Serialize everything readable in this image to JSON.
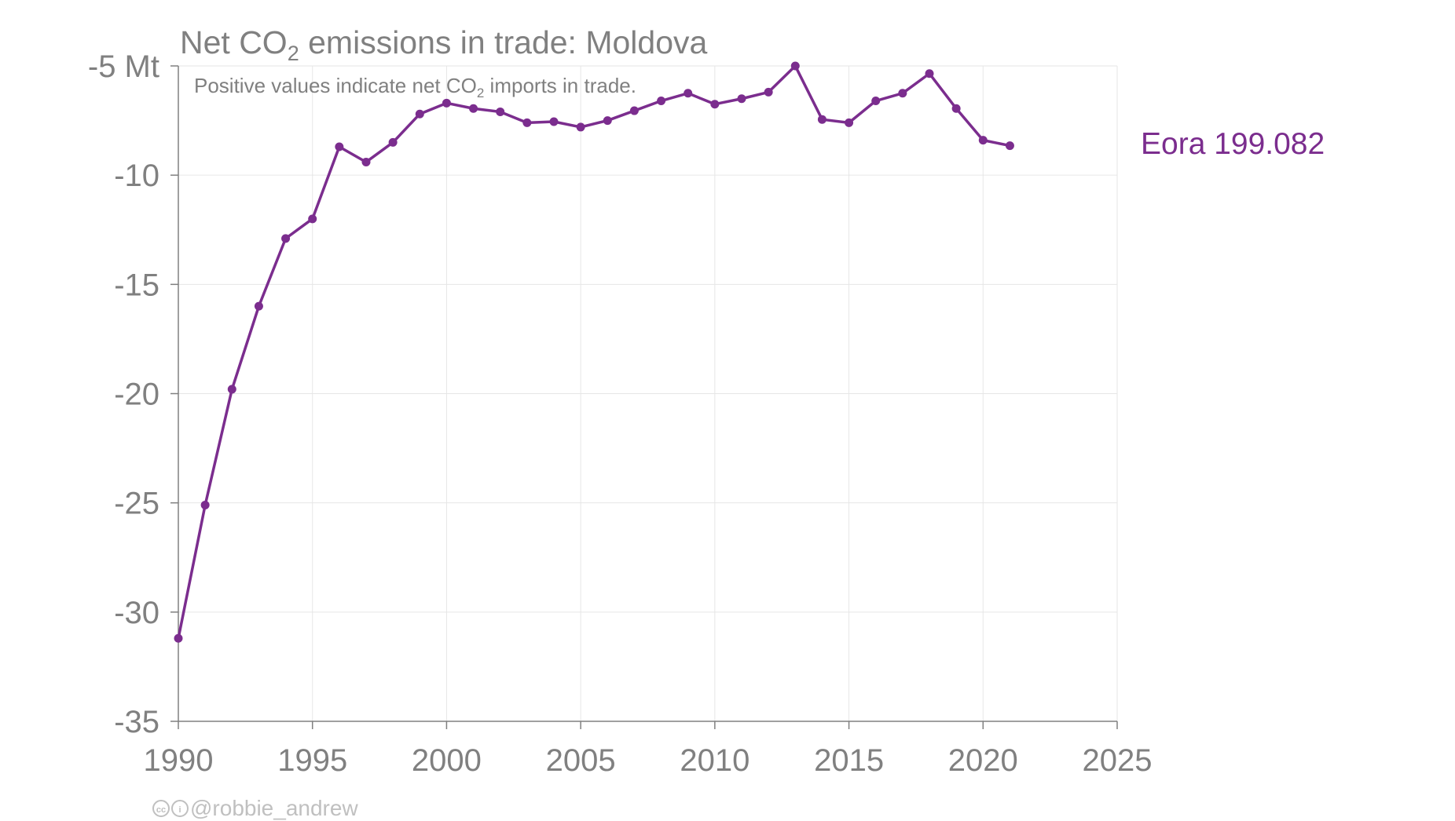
{
  "colors": {
    "series": "#7b2d8e",
    "text": "#808080",
    "grid": "#e6e6e6",
    "credit": "#c0c0c0"
  },
  "credit": {
    "icons": [
      "cc-icon",
      "by-icon"
    ],
    "handle": "@robbie_andrew"
  },
  "chart_data": {
    "type": "line",
    "title": "Net CO2 emissions in trade: Moldova",
    "title_parts": {
      "before": "Net CO",
      "sub": "2",
      "after": " emissions in trade: Moldova"
    },
    "subtitle": "Positive values indicate net CO2 imports in trade.",
    "subtitle_parts": {
      "before": "Positive values indicate net CO",
      "sub": "2",
      "after": " imports in trade."
    },
    "xlabel": "",
    "ylabel": "",
    "ylim": [
      -35,
      -5
    ],
    "xlim": [
      1990,
      2025
    ],
    "y_ticks": [
      -35,
      -30,
      -25,
      -20,
      -15,
      -10,
      -5
    ],
    "y_tick_labels": [
      "-35",
      "-30",
      "-25",
      "-20",
      "-15",
      "-10",
      "-5 Mt"
    ],
    "x_ticks": [
      1990,
      1995,
      2000,
      2005,
      2010,
      2015,
      2020,
      2025
    ],
    "x_tick_labels": [
      "1990",
      "1995",
      "2000",
      "2005",
      "2010",
      "2015",
      "2020",
      "2025"
    ],
    "grid": true,
    "legend": "direct label right of plot",
    "series": [
      {
        "name": "Eora 199.082",
        "x": [
          1990,
          1991,
          1992,
          1993,
          1994,
          1995,
          1996,
          1997,
          1998,
          1999,
          2000,
          2001,
          2002,
          2003,
          2004,
          2005,
          2006,
          2007,
          2008,
          2009,
          2010,
          2011,
          2012,
          2013,
          2014,
          2015,
          2016,
          2017,
          2018,
          2019,
          2020,
          2021
        ],
        "y": [
          -31.2,
          -25.1,
          -19.8,
          -16.0,
          -12.9,
          -12.0,
          -8.7,
          -9.4,
          -8.5,
          -7.2,
          -6.7,
          -6.95,
          -7.1,
          -7.6,
          -7.55,
          -7.8,
          -7.5,
          -7.05,
          -6.6,
          -6.25,
          -6.75,
          -6.5,
          -6.2,
          -5.0,
          -7.45,
          -7.6,
          -6.6,
          -6.25,
          -5.35,
          -6.95,
          -8.4,
          -8.65
        ]
      }
    ]
  }
}
